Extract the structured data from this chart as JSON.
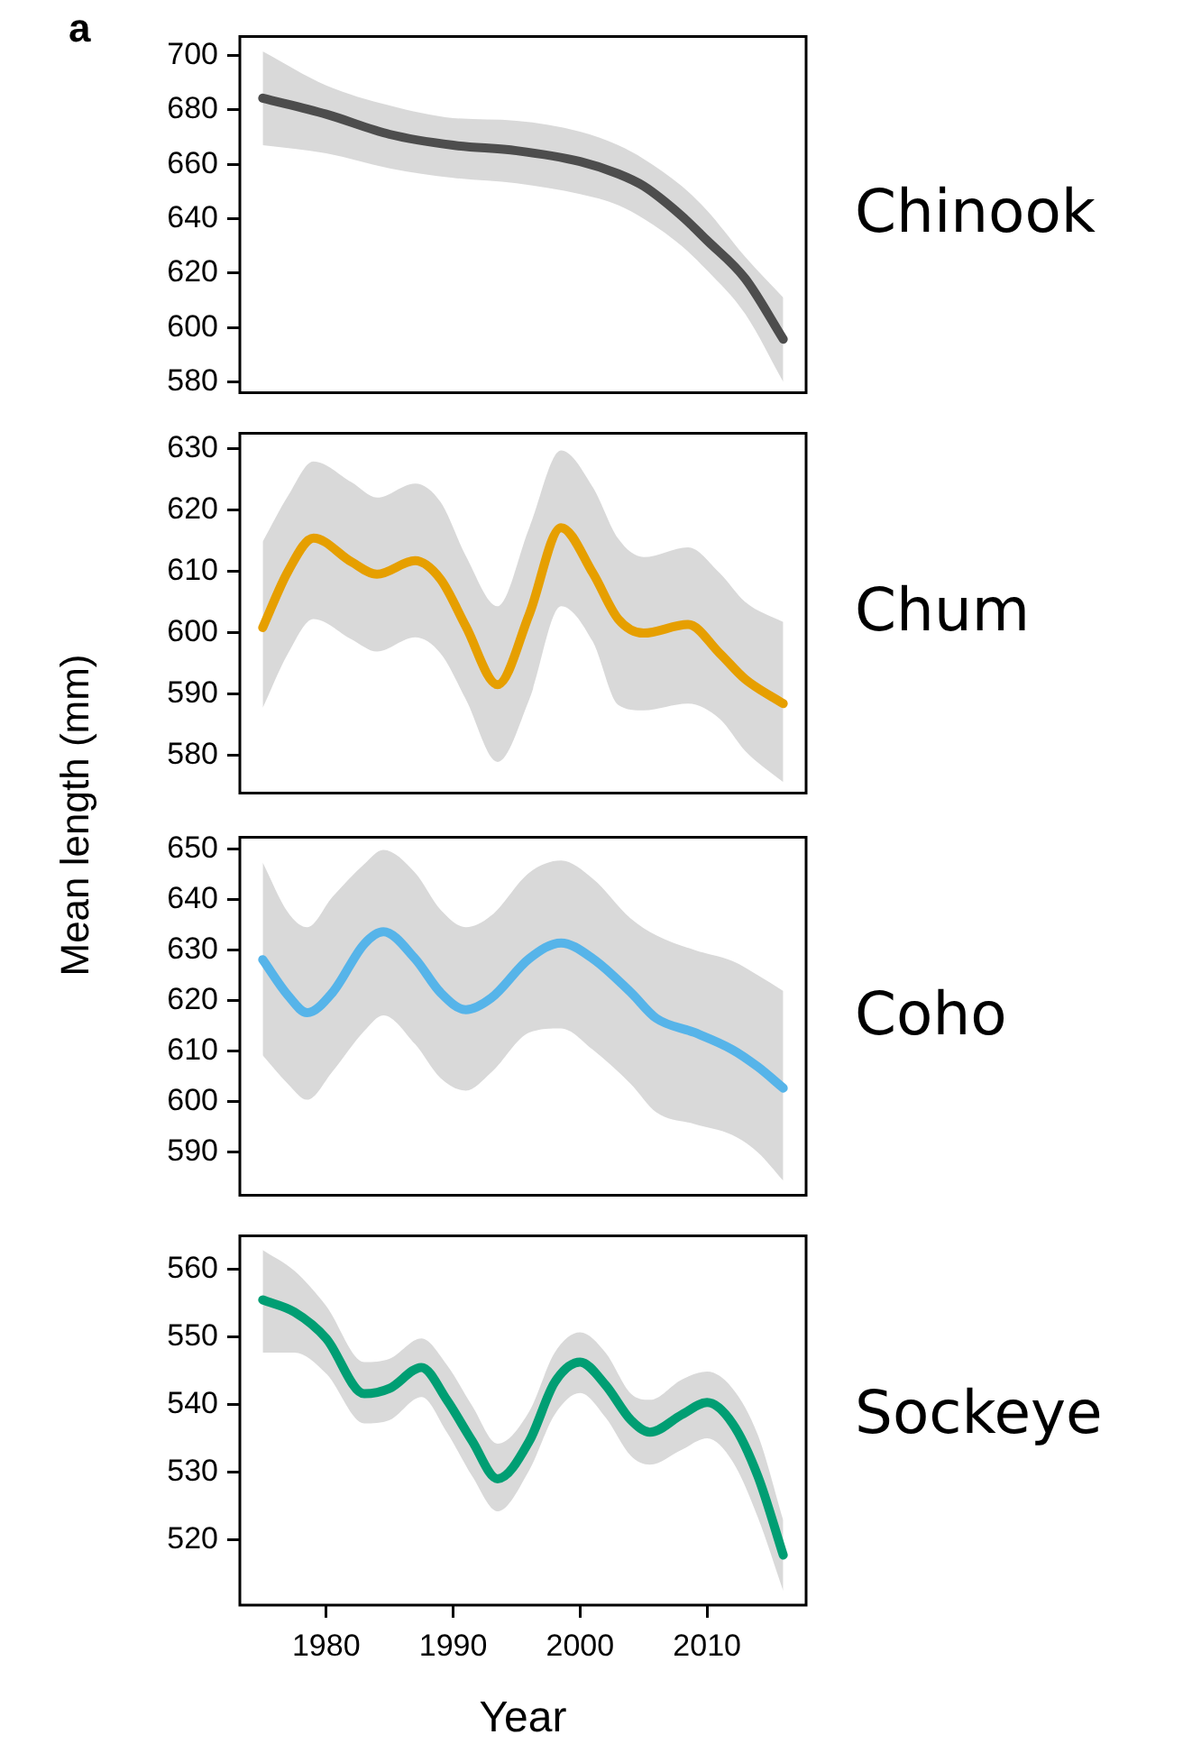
{
  "chart_data": [
    {
      "type": "line",
      "annotations": [
        "a"
      ],
      "xlim": [
        1973.2,
        2017.8
      ],
      "ylim": [
        576,
        707
      ],
      "yticks": [
        580,
        600,
        620,
        640,
        660,
        680,
        700
      ],
      "tick_labels": "y",
      "series": [
        {
          "name": "Chinook",
          "color": "#4d4d4d",
          "x": [
            1975,
            1980,
            1985,
            1990,
            1995,
            2000,
            2003,
            2005,
            2008,
            2010,
            2013,
            2016
          ],
          "values": [
            684.3,
            678.4,
            671,
            667,
            665,
            661,
            656.5,
            652,
            641,
            632,
            618,
            595.7
          ],
          "upper": [
            701.5,
            689,
            681.6,
            677,
            676,
            672,
            667,
            662,
            652,
            643,
            626,
            611
          ],
          "lower": [
            667,
            664,
            658.5,
            655,
            653,
            649,
            645,
            640,
            630,
            621,
            605,
            580
          ]
        }
      ]
    },
    {
      "type": "line",
      "ylabel": "Mean length (mm)",
      "xlim": [
        1973.2,
        2017.8
      ],
      "ylim": [
        573.8,
        632.5
      ],
      "yticks": [
        580,
        590,
        600,
        610,
        620,
        630
      ],
      "tick_labels": "y",
      "series": [
        {
          "name": "Chum",
          "color": "#e69f00",
          "x": [
            1975,
            1977,
            1979,
            1982,
            1984,
            1987,
            1989,
            1991,
            1993.5,
            1996,
            1998.5,
            2001,
            2003,
            2005,
            2008.5,
            2011,
            2013,
            2016
          ],
          "values": [
            600.8,
            610,
            615.4,
            611.5,
            609.5,
            611.7,
            608.7,
            601,
            591.5,
            603,
            617.1,
            609.7,
            602.2,
            599.9,
            601.3,
            596.6,
            592.4,
            588.4
          ],
          "upper": [
            614.8,
            622.3,
            627.9,
            624.5,
            622,
            624.3,
            621.3,
            612.5,
            604.3,
            617.1,
            629.7,
            623.7,
            615.3,
            612.3,
            613.9,
            609.7,
            605,
            601.7
          ],
          "lower": [
            587.7,
            596.6,
            602.2,
            598.9,
            596.9,
            599.2,
            596.6,
            589.1,
            578.9,
            589.1,
            604.3,
            598.5,
            588.2,
            587.3,
            588.4,
            585.9,
            580.7,
            575.6
          ]
        }
      ]
    },
    {
      "type": "line",
      "xlim": [
        1973.2,
        2017.8
      ],
      "ylim": [
        581.5,
        652.3
      ],
      "yticks": [
        590,
        600,
        610,
        620,
        630,
        640,
        650
      ],
      "tick_labels": "y",
      "series": [
        {
          "name": "Coho",
          "color": "#56b4e9",
          "x": [
            1975,
            1977,
            1978.5,
            1980.5,
            1983,
            1984.5,
            1987,
            1989,
            1991,
            1993,
            1996,
            1998.5,
            2001,
            2004,
            2006,
            2009,
            2012,
            2014,
            2016
          ],
          "values": [
            628.1,
            621,
            617.6,
            621.6,
            631.2,
            633.6,
            628.3,
            621.6,
            618.2,
            620.5,
            628.3,
            631.4,
            628.3,
            621.6,
            616.5,
            613.7,
            610.3,
            606.9,
            602.7
          ],
          "upper": [
            647.3,
            637.4,
            634.5,
            640.5,
            647,
            649.8,
            645.3,
            638,
            634.5,
            636.8,
            645.3,
            647.7,
            644.1,
            636.2,
            632.9,
            630,
            627.8,
            625,
            621.9
          ],
          "lower": [
            609.2,
            603.5,
            600.4,
            606,
            614,
            617.1,
            611.4,
            604.7,
            602.2,
            605.8,
            613.7,
            614.5,
            610.3,
            603.5,
            597.9,
            595.6,
            593.4,
            590,
            584.4
          ]
        }
      ]
    },
    {
      "type": "line",
      "xlabel": "Year",
      "xlim": [
        1973.2,
        2017.8
      ],
      "xticks": [
        1980,
        1990,
        2000,
        2010
      ],
      "ylim": [
        510.3,
        565
      ],
      "yticks": [
        520,
        530,
        540,
        550,
        560
      ],
      "series": [
        {
          "name": "Sockeye",
          "color": "#009e73",
          "x": [
            1975,
            1977.5,
            1980,
            1983,
            1985,
            1987.5,
            1989.5,
            1991.5,
            1993.5,
            1996,
            1998,
            2000,
            2002,
            2004,
            2005.5,
            2008,
            2010,
            2012,
            2014,
            2016
          ],
          "values": [
            555.5,
            553.7,
            549.8,
            541.6,
            542.4,
            545.5,
            540.7,
            534.6,
            529,
            534.6,
            543.3,
            546.3,
            542.9,
            537.7,
            535.9,
            538.5,
            540.3,
            537.2,
            529.4,
            517.7
          ],
          "upper": [
            562.9,
            559.8,
            554.6,
            546.3,
            546.8,
            549.8,
            545.9,
            539.8,
            534.2,
            539,
            547.7,
            550.7,
            547.7,
            541.6,
            540.7,
            543.7,
            544.9,
            542.4,
            535.5,
            522.9
          ],
          "lower": [
            547.7,
            547.7,
            544.6,
            537.2,
            537.7,
            541.1,
            535.9,
            529.4,
            524.2,
            530.3,
            538.5,
            541.7,
            538.1,
            532.4,
            531.1,
            533.3,
            535,
            531.6,
            523.3,
            512.4
          ]
        }
      ]
    }
  ]
}
